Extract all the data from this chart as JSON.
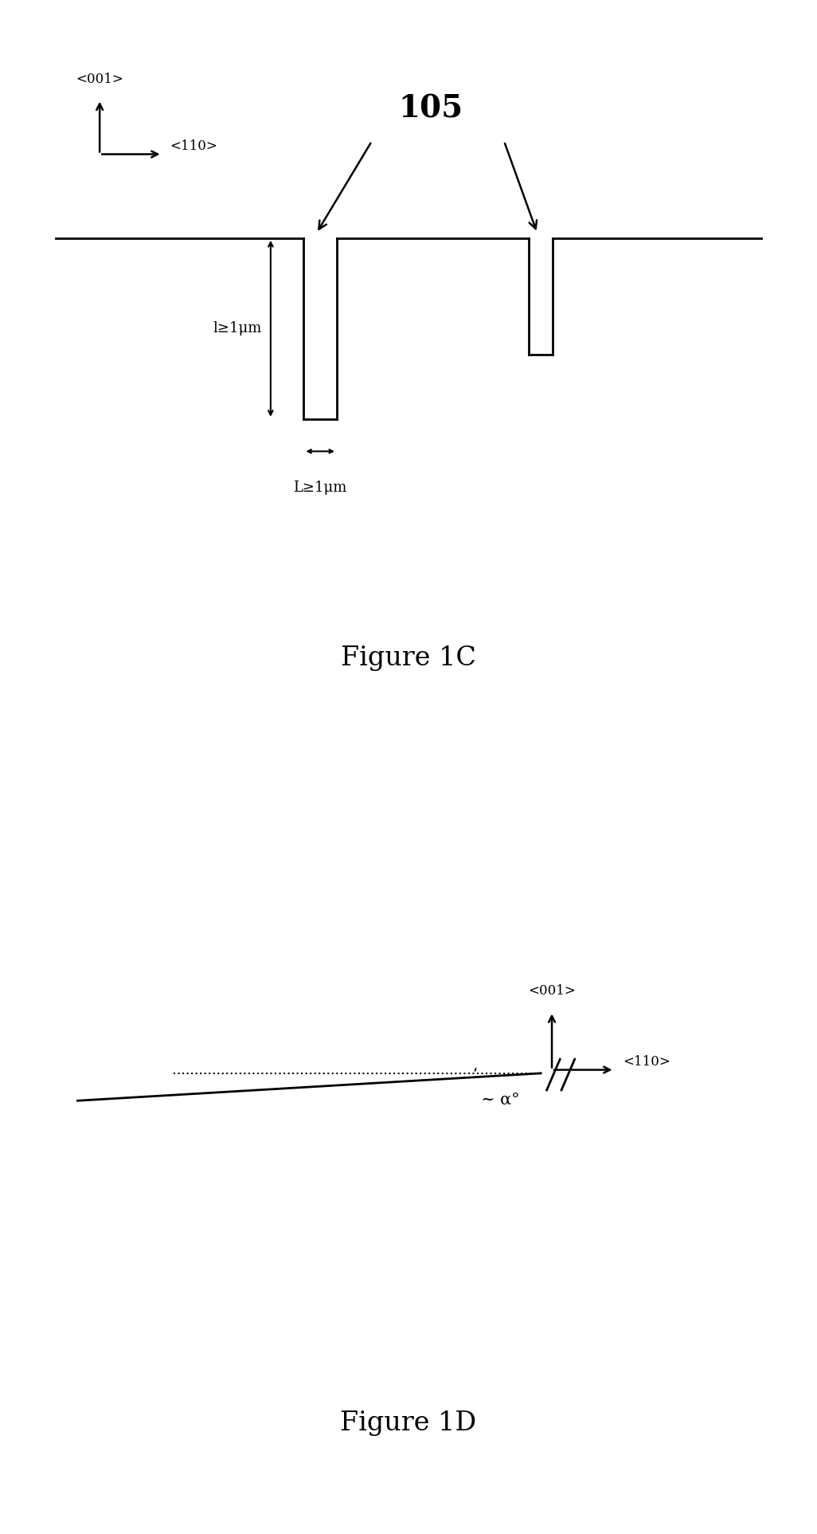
{
  "fig_width": 10.26,
  "fig_height": 19.25,
  "bg_color": "#ffffff",
  "fig1c": {
    "title": "Figure 1C",
    "label_105": "105",
    "label_l": "l≥1μm",
    "label_L": "L≥1μm",
    "label_001": "<001>",
    "label_110": "<110>"
  },
  "fig1d": {
    "title": "Figure 1D",
    "label_001": "<001>",
    "label_110": "<110>",
    "label_alpha": "~ α°"
  }
}
